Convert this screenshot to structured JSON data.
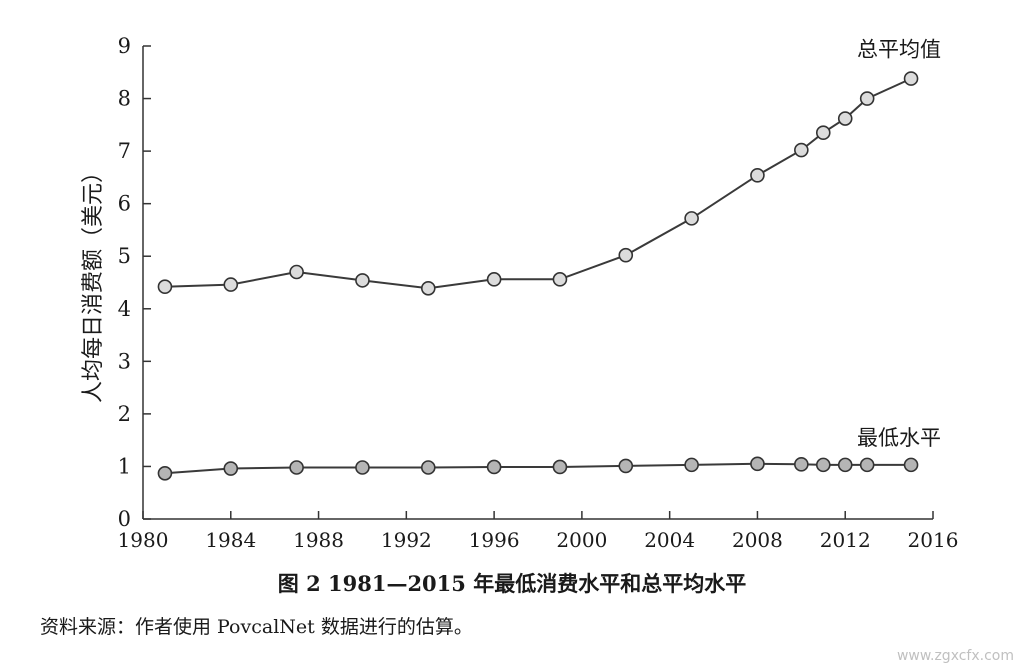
{
  "chart_data": {
    "type": "line",
    "title": "图 2   1981—2015 年最低消费水平和总平均水平",
    "source_note": "资料来源：作者使用 PovcalNet 数据进行的估算。",
    "xlabel": "",
    "ylabel": "人均每日消费额（美元）",
    "xlim": [
      1980,
      2016
    ],
    "ylim": [
      0,
      9
    ],
    "x_ticks": [
      1980,
      1984,
      1988,
      1992,
      1996,
      2000,
      2004,
      2008,
      2012,
      2016
    ],
    "y_ticks": [
      0,
      1,
      2,
      3,
      4,
      5,
      6,
      7,
      8,
      9
    ],
    "grid": false,
    "series": [
      {
        "name": "总平均值",
        "color": "#3a3a3a",
        "marker_fill": "#dcdcdc",
        "x": [
          1981,
          1984,
          1987,
          1990,
          1993,
          1996,
          1999,
          2002,
          2005,
          2008,
          2010,
          2011,
          2012,
          2013,
          2015
        ],
        "y": [
          4.42,
          4.46,
          4.7,
          4.54,
          4.39,
          4.56,
          4.56,
          5.02,
          5.72,
          6.54,
          7.02,
          7.35,
          7.62,
          8.0,
          8.38
        ]
      },
      {
        "name": "最低水平",
        "color": "#3a3a3a",
        "marker_fill": "#b5b5b5",
        "x": [
          1981,
          1984,
          1987,
          1990,
          1993,
          1996,
          1999,
          2002,
          2005,
          2008,
          2010,
          2011,
          2012,
          2013,
          2015
        ],
        "y": [
          0.87,
          0.96,
          0.98,
          0.98,
          0.98,
          0.99,
          0.99,
          1.01,
          1.03,
          1.05,
          1.04,
          1.03,
          1.03,
          1.03,
          1.03
        ]
      }
    ]
  },
  "watermark": "www.zgxcfx.com"
}
